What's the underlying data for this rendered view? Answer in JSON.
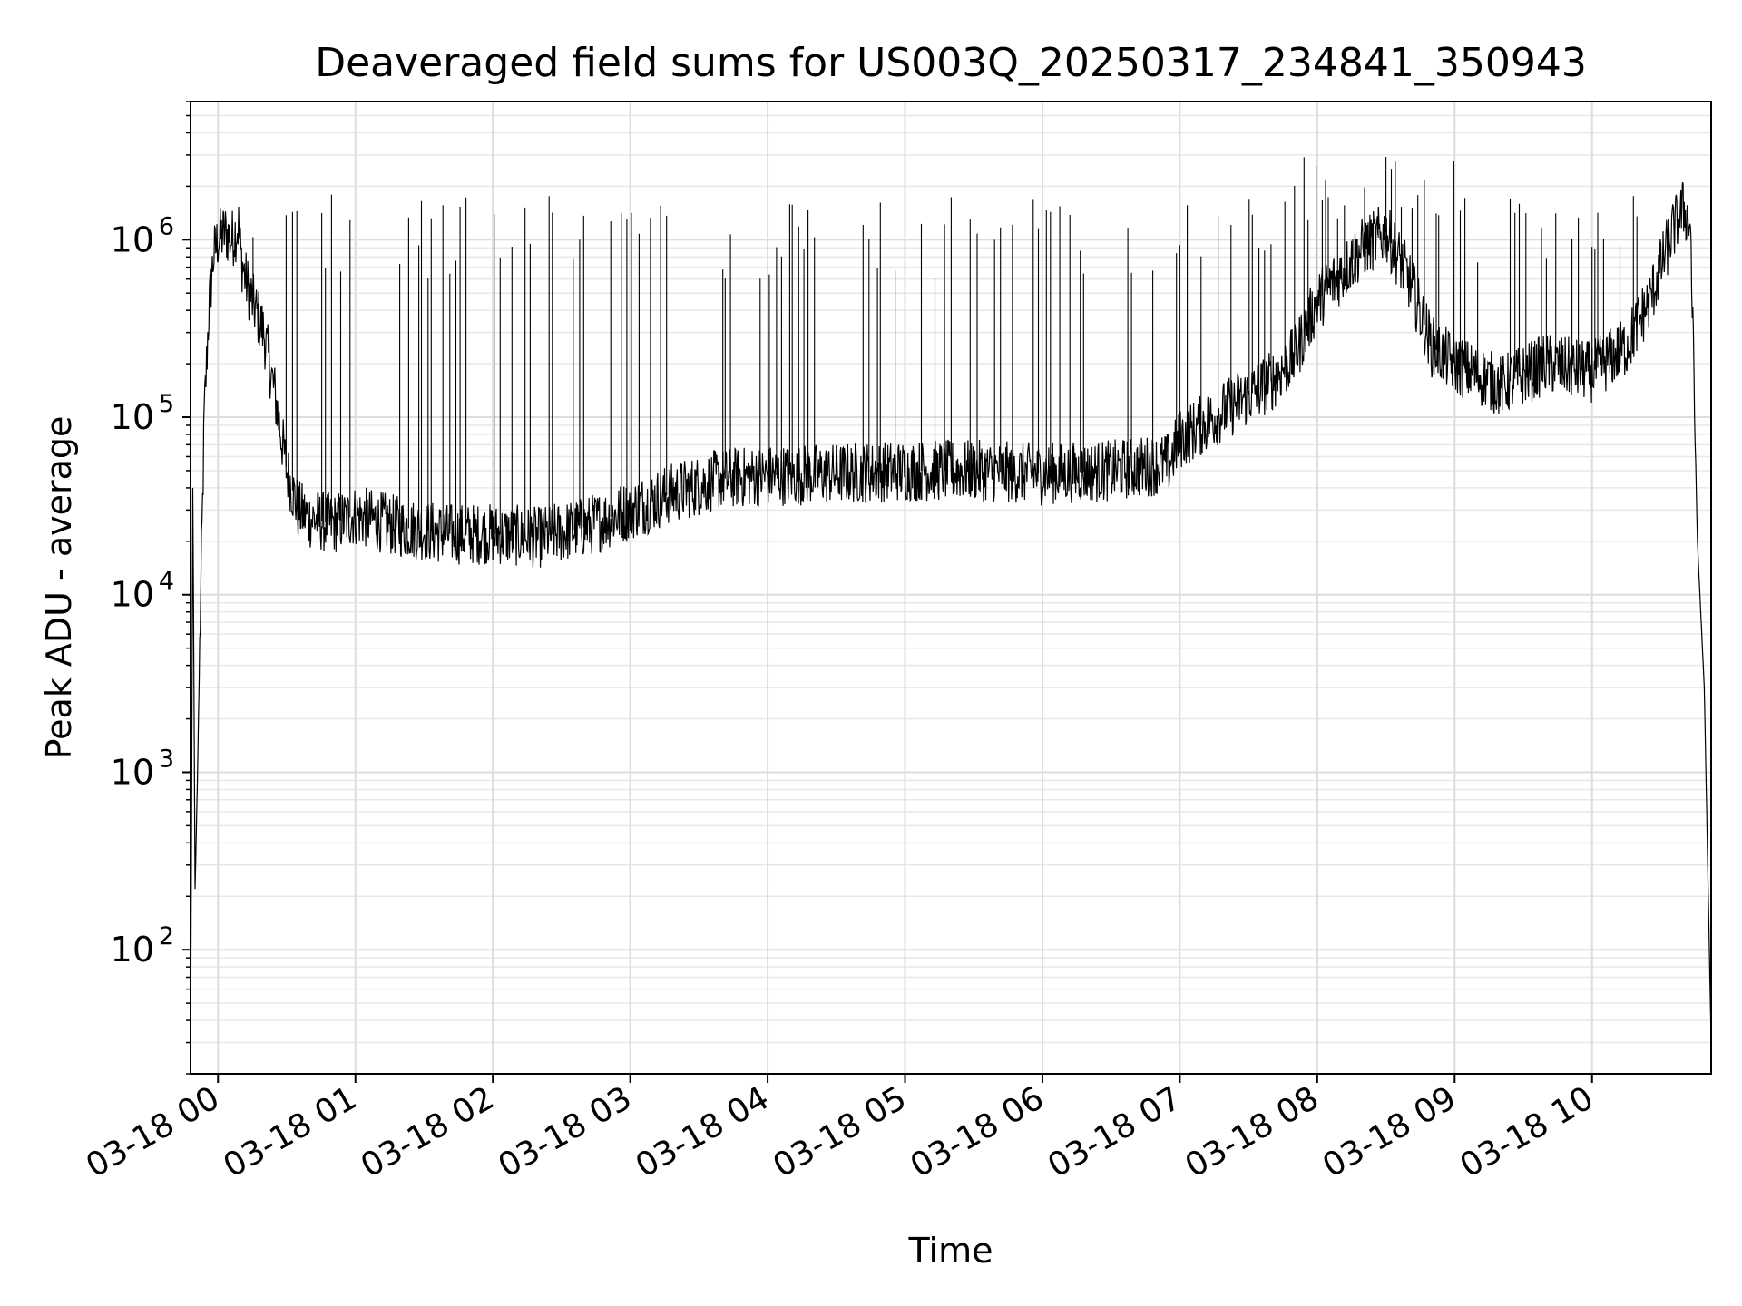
{
  "chart_data": {
    "type": "line",
    "title": "Deaveraged field sums for US003Q_20250317_234841_350943",
    "xlabel": "Time",
    "ylabel": "Peak ADU - average",
    "yscale": "log",
    "ylim": [
      20,
      6000000
    ],
    "xlim": [
      "03-17 23:48",
      "03-18 10:52"
    ],
    "grid": true,
    "series_color": "#000000",
    "x_ticks": [
      {
        "label": "03-18 00",
        "t": "00:00"
      },
      {
        "label": "03-18 01",
        "t": "01:00"
      },
      {
        "label": "03-18 02",
        "t": "02:00"
      },
      {
        "label": "03-18 03",
        "t": "03:00"
      },
      {
        "label": "03-18 04",
        "t": "04:00"
      },
      {
        "label": "03-18 05",
        "t": "05:00"
      },
      {
        "label": "03-18 06",
        "t": "06:00"
      },
      {
        "label": "03-18 07",
        "t": "07:00"
      },
      {
        "label": "03-18 08",
        "t": "08:00"
      },
      {
        "label": "03-18 09",
        "t": "09:00"
      },
      {
        "label": "03-18 10",
        "t": "10:00"
      }
    ],
    "y_ticks": [
      {
        "mantissa": "10",
        "exponent": "2",
        "value": 100
      },
      {
        "mantissa": "10",
        "exponent": "3",
        "value": 1000
      },
      {
        "mantissa": "10",
        "exponent": "4",
        "value": 10000
      },
      {
        "mantissa": "10",
        "exponent": "5",
        "value": 100000
      },
      {
        "mantissa": "10",
        "exponent": "6",
        "value": 1000000
      }
    ],
    "series": [
      {
        "x": [
          "03-17 23:48",
          "03-17 23:49",
          "03-17 23:50",
          "03-17 23:51",
          "03-17 23:52",
          "03-17 23:54",
          "03-17 23:56",
          "03-17 23:58",
          "03-18 00:00",
          "03-18 00:03",
          "03-18 00:06",
          "03-18 00:09",
          "03-18 00:10",
          "03-18 00:12",
          "03-18 00:15",
          "03-18 00:20",
          "03-18 00:25",
          "03-18 00:30",
          "03-18 00:35",
          "03-18 00:40",
          "03-18 00:50",
          "03-18 01:00",
          "03-18 01:20",
          "03-18 01:40",
          "03-18 02:00",
          "03-18 02:20",
          "03-18 02:40",
          "03-18 03:00",
          "03-18 03:20",
          "03-18 03:40",
          "03-18 04:00",
          "03-18 04:30",
          "03-18 05:00",
          "03-18 05:30",
          "03-18 06:00",
          "03-18 06:30",
          "03-18 06:55",
          "03-18 07:00",
          "03-18 07:20",
          "03-18 07:40",
          "03-18 07:50",
          "03-18 08:00",
          "03-18 08:20",
          "03-18 08:30",
          "03-18 08:40",
          "03-18 08:50",
          "03-18 09:00",
          "03-18 09:20",
          "03-18 09:40",
          "03-18 10:00",
          "03-18 10:15",
          "03-18 10:25",
          "03-18 10:30",
          "03-18 10:35",
          "03-18 10:40",
          "03-18 10:43",
          "03-18 10:46",
          "03-18 10:49",
          "03-18 10:52"
        ],
        "values": [
          20,
          40000,
          220,
          900,
          5000,
          100000,
          400000,
          800000,
          1000000,
          1100000,
          1000000,
          1200000,
          800000,
          600000,
          450000,
          300000,
          130000,
          50000,
          30000,
          27000,
          25000,
          28000,
          24000,
          22000,
          22000,
          21000,
          24000,
          30000,
          38000,
          45000,
          47000,
          48000,
          50000,
          50000,
          48000,
          50000,
          55000,
          75000,
          110000,
          160000,
          220000,
          450000,
          900000,
          1100000,
          600000,
          250000,
          200000,
          150000,
          200000,
          180000,
          250000,
          450000,
          700000,
          1100000,
          1500000,
          1200000,
          20000,
          3000,
          30
        ]
      }
    ]
  }
}
